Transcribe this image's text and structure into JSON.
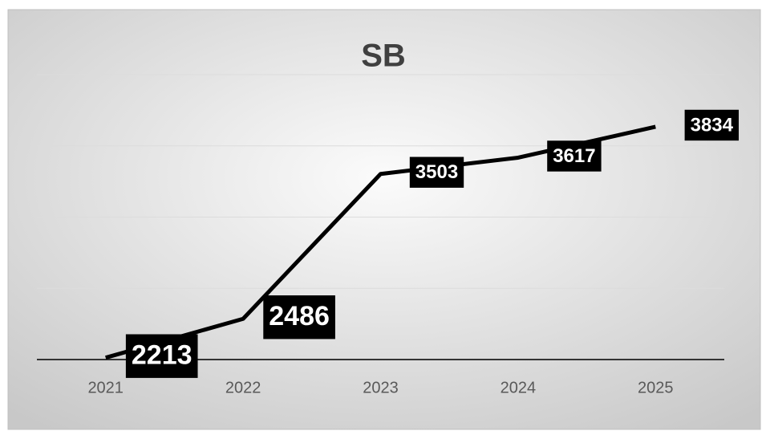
{
  "chart_data": {
    "type": "line",
    "title": "SB",
    "categories": [
      "2021",
      "2022",
      "2023",
      "2024",
      "2025"
    ],
    "series": [
      {
        "name": "SB",
        "color": "#000000",
        "values": [
          2213,
          2486,
          3503,
          3617,
          3834
        ]
      }
    ],
    "ylim": [
      2200,
      4200
    ],
    "yticks": [
      2200,
      2700,
      3200,
      3700,
      4200
    ],
    "grid": true
  }
}
